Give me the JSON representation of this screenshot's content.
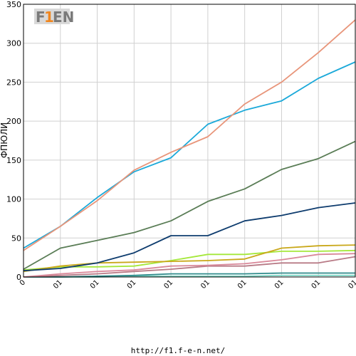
{
  "logo": {
    "text_main": "F",
    "text_num": "1",
    "text_rest": "EN",
    "colors": {
      "gray": "#7a7a7a",
      "orange": "#f0861f"
    }
  },
  "footer": {
    "url": "http://f1.f-e-n.net/"
  },
  "chart_data": {
    "type": "line",
    "title": "",
    "xlabel": "",
    "ylabel": "ФПЮЛИ",
    "ylim": [
      0,
      350
    ],
    "y_ticks": [
      0,
      50,
      100,
      150,
      200,
      250,
      300,
      350
    ],
    "x": [
      0,
      1,
      2,
      3,
      4,
      5,
      6,
      7,
      8,
      9
    ],
    "x_tick_labels": [
      "0",
      "01",
      "01",
      "01",
      "01",
      "01",
      "01",
      "01",
      "01",
      "01"
    ],
    "grid": true,
    "series": [
      {
        "color": "#e8957a",
        "values": [
          34,
          65,
          98,
          137,
          160,
          180,
          222,
          250,
          288,
          330
        ]
      },
      {
        "color": "#1ba9d9",
        "values": [
          37,
          65,
          102,
          135,
          153,
          196,
          214,
          226,
          255,
          276
        ]
      },
      {
        "color": "#5a7d56",
        "values": [
          10,
          37,
          47,
          57,
          72,
          97,
          113,
          138,
          152,
          174
        ]
      },
      {
        "color": "#0e3c6e",
        "values": [
          8,
          11,
          18,
          31,
          53,
          53,
          72,
          79,
          89,
          95
        ]
      },
      {
        "color": "#c9a81a",
        "values": [
          7,
          14,
          18,
          19,
          20,
          21,
          23,
          37,
          40,
          41
        ]
      },
      {
        "color": "#a5e83a",
        "values": [
          9,
          13,
          13,
          14,
          21,
          29,
          29,
          33,
          33,
          34
        ]
      },
      {
        "color": "#d9899a",
        "values": [
          0,
          4,
          7,
          9,
          14,
          15,
          17,
          22,
          29,
          30
        ]
      },
      {
        "color": "#b87a86",
        "values": [
          0,
          2,
          4,
          7,
          10,
          14,
          14,
          18,
          18,
          26
        ]
      },
      {
        "color": "#2e8b8b",
        "values": [
          0,
          0,
          1,
          2,
          4,
          4,
          4,
          5,
          5,
          5
        ]
      },
      {
        "color": "#7fd9c8",
        "values": [
          0,
          0,
          0,
          1,
          1,
          1,
          1,
          2,
          2,
          2
        ]
      }
    ]
  }
}
